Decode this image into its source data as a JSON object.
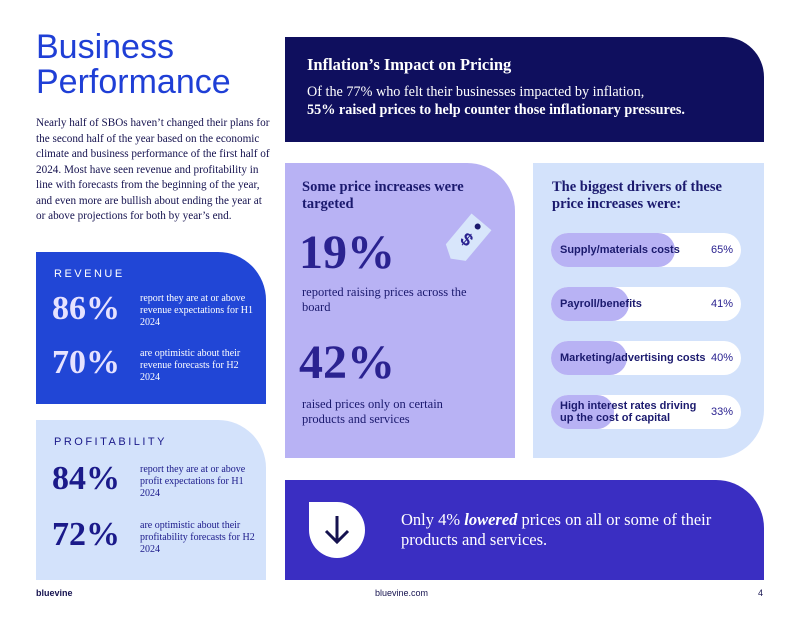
{
  "header": {
    "title": "Business Performance",
    "intro": "Nearly half of SBOs haven’t changed their plans for the second half of the year based on the economic climate and business performance of the first half of 2024. Most have seen revenue and profitability in line with forecasts from the beginning of the year, and even more are bullish about ending the year at or above projections for both by year’s end."
  },
  "revenue": {
    "label": "REVENUE",
    "stats": [
      {
        "value": "86%",
        "text": "report they are at or above revenue expectations for H1 2024"
      },
      {
        "value": "70%",
        "text": "are optimistic about their revenue forecasts for H2 2024"
      }
    ]
  },
  "profitability": {
    "label": "PROFITABILITY",
    "stats": [
      {
        "value": "84%",
        "text": "report they are at or above profit expectations for H1 2024"
      },
      {
        "value": "72%",
        "text": "are optimistic about their profitability forecasts for H2 2024"
      }
    ]
  },
  "inflation": {
    "title": "Inflation’s Impact on Pricing",
    "text": "Of the 77% who felt their businesses impacted by inflation,",
    "highlight": "55% raised prices to help counter those inflationary pressures."
  },
  "targeted": {
    "title": "Some price increases were targeted",
    "stats": [
      {
        "value": "19%",
        "text": "reported raising prices across the board"
      },
      {
        "value": "42%",
        "text": "raised prices only on certain products and services"
      }
    ]
  },
  "drivers": {
    "title": "The biggest drivers of these price increases were:",
    "items": [
      {
        "label": "Supply/materials costs",
        "value": 65,
        "value_label": "65%"
      },
      {
        "label": "Payroll/benefits",
        "value": 41,
        "value_label": "41%"
      },
      {
        "label": "Marketing/advertising costs",
        "value": 40,
        "value_label": "40%"
      },
      {
        "label": "High interest rates driving up the cost of capital",
        "value": 33,
        "value_label": "33%"
      }
    ]
  },
  "callout": {
    "before": "Only 4%",
    "emphasis": "lowered",
    "after": "prices on all or some of their products and services."
  },
  "footer": {
    "brand": "bluevine",
    "url": "bluevine.com",
    "page": "4"
  }
}
